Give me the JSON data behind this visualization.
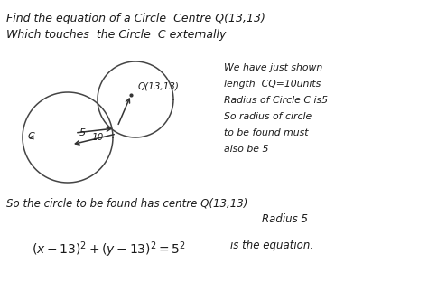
{
  "background_color": "#ffffff",
  "title_line1": "Find the equation of a Circle  Centre Q(13,13)",
  "title_line2": "Which touches  the Circle  C externally",
  "circle_label_Q": "Q(13,13)",
  "circle_label_C": "C",
  "label_5": "5",
  "label_10": "10",
  "right_text_lines": [
    "We have just shown",
    "length  CQ=10units",
    "Radius of Circle C is5",
    "So radius of circle",
    "to be found must",
    "also be 5"
  ],
  "bottom_line1": "So the circle to be found has centre Q(13,13)",
  "bottom_line2": "Radius 5",
  "eq_text": "$(x-13)^2+(y-13)^2=5^2$",
  "eq_suffix": "  is the equation."
}
